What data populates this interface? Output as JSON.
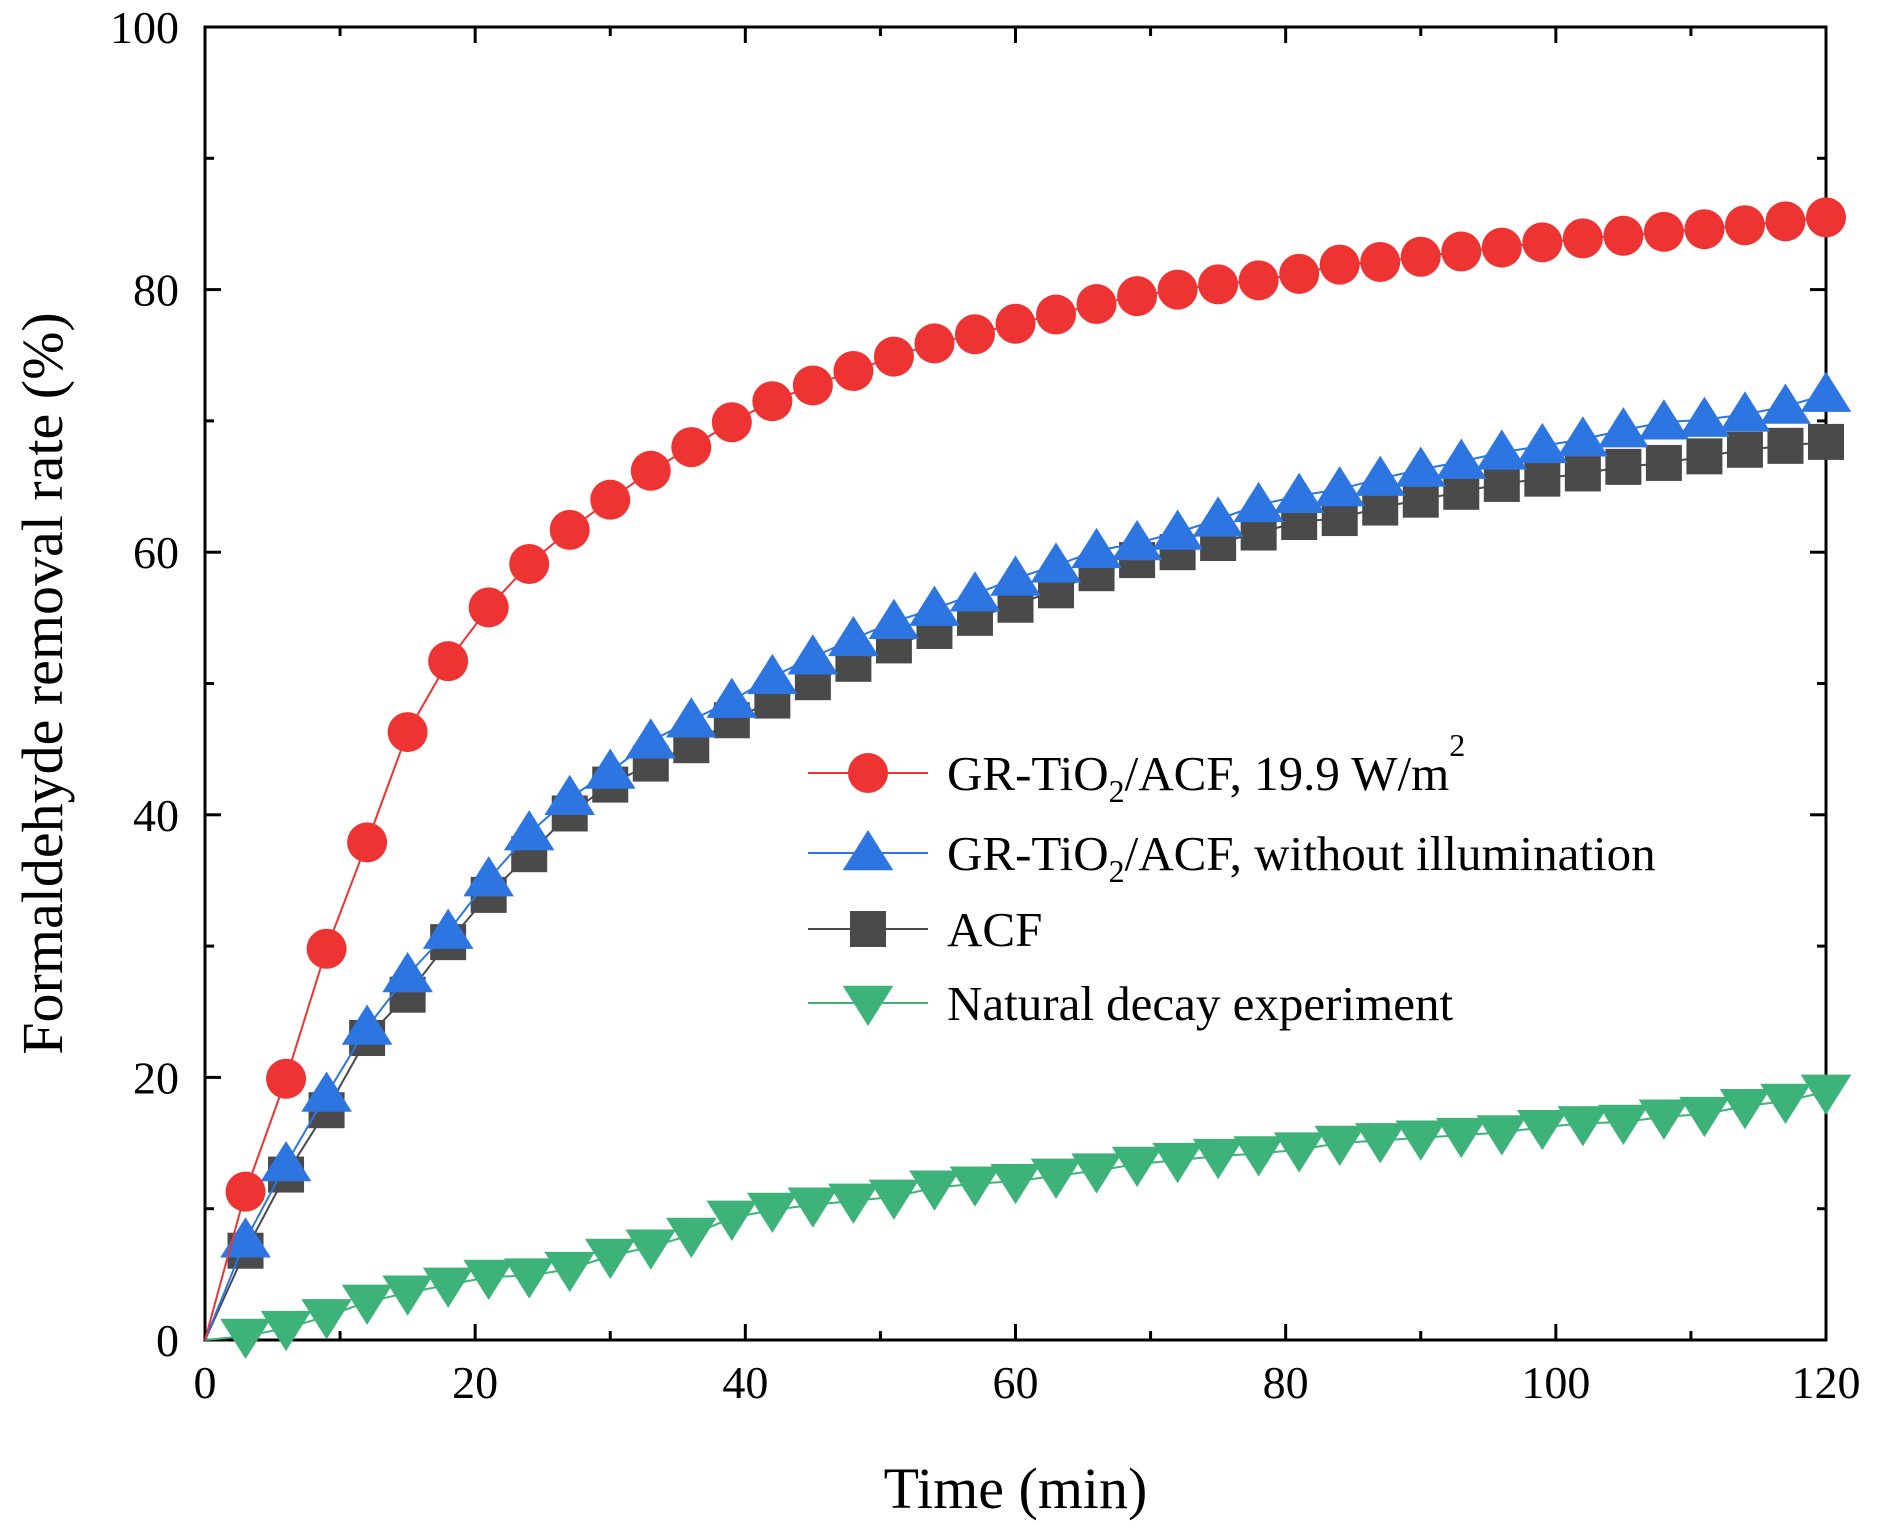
{
  "chart_data": {
    "type": "line",
    "title": "",
    "xlabel": "Time (min)",
    "ylabel": "Formaldehyde removal rate (%)",
    "xlim": [
      0,
      120
    ],
    "ylim": [
      0,
      100
    ],
    "xticks": [
      0,
      20,
      40,
      60,
      80,
      100,
      120
    ],
    "yticks": [
      0,
      20,
      40,
      60,
      80,
      100
    ],
    "xtick_labels": [
      "0",
      "20",
      "40",
      "60",
      "80",
      "100",
      "120"
    ],
    "ytick_labels": [
      "0",
      "20",
      "40",
      "60",
      "80",
      "100"
    ],
    "grid": false,
    "legend_position": "center-right",
    "x": [
      0,
      3,
      6,
      9,
      12,
      15,
      18,
      21,
      24,
      27,
      30,
      33,
      36,
      39,
      42,
      45,
      48,
      51,
      54,
      57,
      60,
      63,
      66,
      69,
      72,
      75,
      78,
      81,
      84,
      87,
      90,
      93,
      96,
      99,
      102,
      105,
      108,
      111,
      114,
      117,
      120
    ],
    "series": [
      {
        "name": "GR-TiO2/ACF, 19.9 W/m2",
        "legend_parts": [
          [
            "GR-TiO",
            "n"
          ],
          [
            "2",
            "sub"
          ],
          [
            "/ACF, 19.9 W/m",
            "n"
          ],
          [
            "2",
            "sup"
          ]
        ],
        "color": "#ee3333",
        "marker": "circle",
        "values": [
          0,
          11.3,
          19.9,
          29.8,
          37.9,
          46.3,
          51.7,
          55.8,
          59.1,
          61.7,
          64.0,
          66.2,
          68.0,
          69.9,
          71.5,
          72.7,
          73.8,
          74.9,
          75.9,
          76.6,
          77.4,
          78.1,
          78.9,
          79.5,
          80.0,
          80.4,
          80.7,
          81.2,
          81.9,
          82.1,
          82.5,
          82.9,
          83.2,
          83.6,
          83.9,
          84.1,
          84.4,
          84.6,
          84.9,
          85.2,
          85.5
        ]
      },
      {
        "name": "GR-TiO2/ACF, without illumination",
        "legend_parts": [
          [
            "GR-TiO",
            "n"
          ],
          [
            "2",
            "sub"
          ],
          [
            "/ACF, without illumination",
            "n"
          ]
        ],
        "color": "#2d75e0",
        "marker": "triangle-up",
        "values": [
          0,
          7.6,
          13.4,
          18.7,
          23.8,
          27.8,
          31.1,
          35.1,
          38.6,
          41.3,
          43.3,
          45.6,
          47.2,
          48.7,
          50.5,
          52.0,
          53.4,
          54.7,
          55.7,
          56.8,
          58.0,
          59.0,
          60.1,
          60.7,
          61.5,
          62.5,
          63.6,
          64.3,
          64.8,
          65.6,
          66.3,
          66.9,
          67.6,
          68.1,
          68.6,
          69.3,
          69.9,
          70.1,
          70.5,
          71.1,
          72.0
        ]
      },
      {
        "name": "ACF",
        "legend_parts": [
          [
            "ACF",
            "n"
          ]
        ],
        "color": "#4a4a4a",
        "marker": "square",
        "values": [
          0,
          6.8,
          12.6,
          17.5,
          23.0,
          26.3,
          30.3,
          33.9,
          37.0,
          40.1,
          42.3,
          43.9,
          45.3,
          47.2,
          48.7,
          50.1,
          51.5,
          52.9,
          54.0,
          55.0,
          56.0,
          57.1,
          58.4,
          59.4,
          60.0,
          60.7,
          61.5,
          62.3,
          62.6,
          63.4,
          64.0,
          64.6,
          65.2,
          65.6,
          66.0,
          66.5,
          66.8,
          67.3,
          67.8,
          68.1,
          68.4
        ]
      },
      {
        "name": "Natural decay experiment",
        "legend_parts": [
          [
            "Natural decay experiment",
            "n"
          ]
        ],
        "color": "#3db37a",
        "marker": "triangle-down",
        "values": [
          0,
          0.3,
          0.9,
          1.8,
          2.9,
          3.6,
          4.2,
          4.8,
          4.9,
          5.4,
          6.4,
          7.1,
          8.0,
          9.3,
          9.9,
          10.3,
          10.6,
          10.9,
          11.6,
          11.9,
          12.1,
          12.5,
          12.9,
          13.4,
          13.7,
          14.0,
          14.2,
          14.5,
          15.0,
          15.2,
          15.4,
          15.6,
          15.8,
          16.2,
          16.5,
          16.6,
          17.0,
          17.2,
          17.8,
          18.2,
          18.9
        ]
      }
    ]
  }
}
